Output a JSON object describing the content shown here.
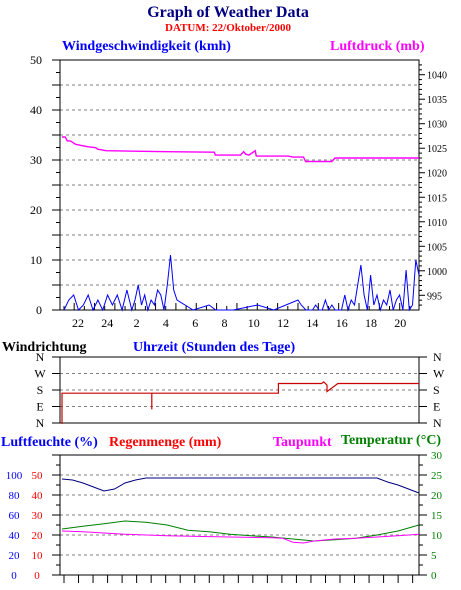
{
  "title": "Graph of Weather Data",
  "subtitle": "DATUM: 22/Oktober/2000",
  "colors": {
    "navy": "#000080",
    "red": "#ff0000",
    "magenta": "#ff00ff",
    "blue": "#0000ff",
    "green": "#008000",
    "darkred": "#cc0000",
    "wind_dir": "#cc0000",
    "grid": "#000000"
  },
  "chart_data": [
    {
      "type": "line",
      "id": "wind-pressure",
      "series": [
        {
          "name": "Windgeschwindigkeit (kmh)",
          "axis": "left",
          "color": "#0000ff",
          "x": [
            0.0,
            0.3,
            0.6,
            0.9,
            1.2,
            1.5,
            1.8,
            2.1,
            2.4,
            2.7,
            3.0,
            3.3,
            3.6,
            3.9,
            4.2,
            4.4,
            4.6,
            4.8,
            5.0,
            5.2,
            5.4,
            5.6,
            5.8,
            6.0,
            6.2,
            6.4,
            6.6,
            6.8,
            7.0,
            8.0,
            9.0,
            9.4,
            10.5,
            12.0,
            13.0,
            14.5,
            14.7,
            15.0,
            15.2,
            15.4,
            15.6,
            15.8,
            16.0,
            16.2,
            16.4,
            16.6,
            16.8,
            17.0,
            17.2,
            17.4,
            17.6,
            17.8,
            18.0,
            18.2,
            18.4,
            18.6,
            18.8,
            19.0,
            19.2,
            19.4,
            19.6,
            19.8,
            20.0,
            20.2,
            20.4,
            20.6,
            20.8,
            21.0,
            21.2,
            21.4,
            21.6,
            21.8,
            22.0
          ],
          "y": [
            0,
            2,
            3,
            0,
            1,
            3,
            0,
            2,
            0,
            3,
            1,
            3,
            0,
            4,
            0,
            2,
            5,
            1,
            3,
            0,
            2,
            1,
            4,
            3,
            0,
            5,
            11,
            4,
            2,
            0,
            1,
            0,
            0,
            1,
            0,
            2,
            1,
            0,
            0,
            0,
            1,
            0,
            0,
            2,
            0,
            1,
            0,
            0,
            0,
            3,
            0,
            2,
            1,
            5,
            9,
            3,
            0,
            7,
            1,
            3,
            0,
            2,
            1,
            4,
            0,
            2,
            3,
            0,
            8,
            0,
            1,
            10,
            7
          ],
          "x_is_hours_offset_from_hour_21": true
        },
        {
          "name": "Luftdruck (mb)",
          "axis": "right",
          "color": "#ff00ff",
          "x": [
            0.0,
            0.3,
            0.5,
            0.8,
            1.3,
            2.0,
            2.5,
            3.2,
            3.4,
            4.2,
            10.0,
            14.5,
            14.6,
            17.0,
            17.3,
            17.5,
            17.8,
            18.4,
            18.5,
            21.5,
            22.0,
            23.0,
            23.2,
            25.7,
            26.0,
            30.0,
            30.3,
            34.0
          ],
          "y": [
            1027.3,
            1027.3,
            1026.5,
            1026.5,
            1025.8,
            1025.5,
            1025.3,
            1025.1,
            1024.8,
            1024.5,
            1024.3,
            1024.2,
            1023.6,
            1023.6,
            1024.3,
            1023.8,
            1023.6,
            1024.5,
            1023.4,
            1023.4,
            1023.2,
            1023.2,
            1022.3,
            1022.3,
            1023.0,
            1023.0,
            1023.0,
            1023.0
          ],
          "x_is_hours_offset_from_hour_21": true
        }
      ],
      "left_axis": {
        "label": "Windgeschwindigkeit (kmh)",
        "min": 0,
        "max": 50,
        "ticks": [
          "0",
          "10",
          "20",
          "30",
          "40",
          "50"
        ]
      },
      "right_axis": {
        "label": "Luftdruck (mb)",
        "min": 992,
        "max": 1043,
        "ticks": [
          "995",
          "1000",
          "1005",
          "1010",
          "1015",
          "1020",
          "1025",
          "1030",
          "1035",
          "1040"
        ]
      },
      "x_axis": {
        "label": "Uhrzeit (Stunden des Tage)",
        "ticks": [
          "22",
          "24",
          "2",
          "4",
          "6",
          "8",
          "10",
          "12",
          "14",
          "16",
          "18",
          "20"
        ]
      },
      "grid": "horizontal-dashed"
    },
    {
      "type": "line",
      "id": "wind-direction",
      "label": "Windrichtung",
      "axis": {
        "categories": [
          "N",
          "W",
          "S",
          "E",
          "N"
        ]
      },
      "series": [
        {
          "name": "Windrichtung",
          "color": "#cc0000",
          "x": [
            0.0,
            0.0,
            1.0,
            8.0,
            8.3,
            8.3,
            8.3,
            20.0,
            20.0,
            21.2,
            21.2,
            21.6,
            21.6,
            24.0,
            24.2,
            24.5,
            24.5,
            25.5,
            25.7,
            26.0,
            27.0,
            33.0
          ],
          "y_categories_index": [
            4.2,
            2.3,
            2.3,
            2.3,
            2.3,
            3.3,
            2.3,
            2.3,
            1.7,
            1.7,
            1.7,
            1.7,
            1.7,
            1.7,
            1.6,
            1.8,
            2.2,
            1.7,
            1.7,
            1.7,
            1.7,
            1.7
          ]
        }
      ]
    },
    {
      "type": "line",
      "id": "humidity-rain-temp",
      "labels": [
        "Luftfeuchte (%)",
        "Regenmenge (mm)",
        "Taupunkt",
        "Temperatur (°C)"
      ],
      "left_axis_outer": {
        "label": "Luftfeuchte (%)",
        "min": 0,
        "max": 120,
        "ticks": [
          "0",
          "20",
          "40",
          "60",
          "80",
          "100"
        ]
      },
      "left_axis_inner": {
        "label": "Regenmenge (mm)",
        "min": 0,
        "max": 60,
        "ticks": [
          "0",
          "10",
          "20",
          "30",
          "40",
          "50"
        ]
      },
      "right_axis": {
        "label": "Temperatur (°C)",
        "min": 0,
        "max": 30,
        "ticks": [
          "0",
          "5",
          "10",
          "15",
          "20",
          "25",
          "30"
        ]
      },
      "series": [
        {
          "name": "Luftfeuchte (%)",
          "axis": "left_outer",
          "color": "#000080",
          "x": [
            0,
            1,
            2,
            3,
            4,
            5,
            6,
            7,
            8,
            30,
            31,
            32,
            33,
            34
          ],
          "y": [
            96,
            95,
            92,
            88,
            84,
            86,
            92,
            95,
            97,
            97,
            93,
            90,
            86,
            82
          ]
        },
        {
          "name": "Taupunkt",
          "axis": "right",
          "color": "#ff00ff",
          "x": [
            0,
            2,
            4,
            6,
            8,
            10,
            14,
            18,
            20,
            21,
            22,
            23,
            24,
            26,
            28,
            30,
            32,
            34
          ],
          "y": [
            11,
            10.8,
            10.5,
            10.2,
            10.0,
            9.8,
            9.6,
            9.4,
            9.3,
            9.2,
            8.2,
            8.0,
            8.5,
            9.0,
            9.2,
            9.5,
            9.8,
            10.2
          ]
        },
        {
          "name": "Temperatur (°C)",
          "axis": "right",
          "color": "#008000",
          "x": [
            0,
            2,
            4,
            6,
            8,
            10,
            12,
            14,
            16,
            18,
            20,
            22,
            24,
            26,
            28,
            30,
            32,
            34
          ],
          "y": [
            11.5,
            12.2,
            12.8,
            13.5,
            13.2,
            12.5,
            11.2,
            10.8,
            10.2,
            9.8,
            9.5,
            9.0,
            8.5,
            8.8,
            9.2,
            10.0,
            11.0,
            12.5
          ]
        }
      ]
    }
  ]
}
